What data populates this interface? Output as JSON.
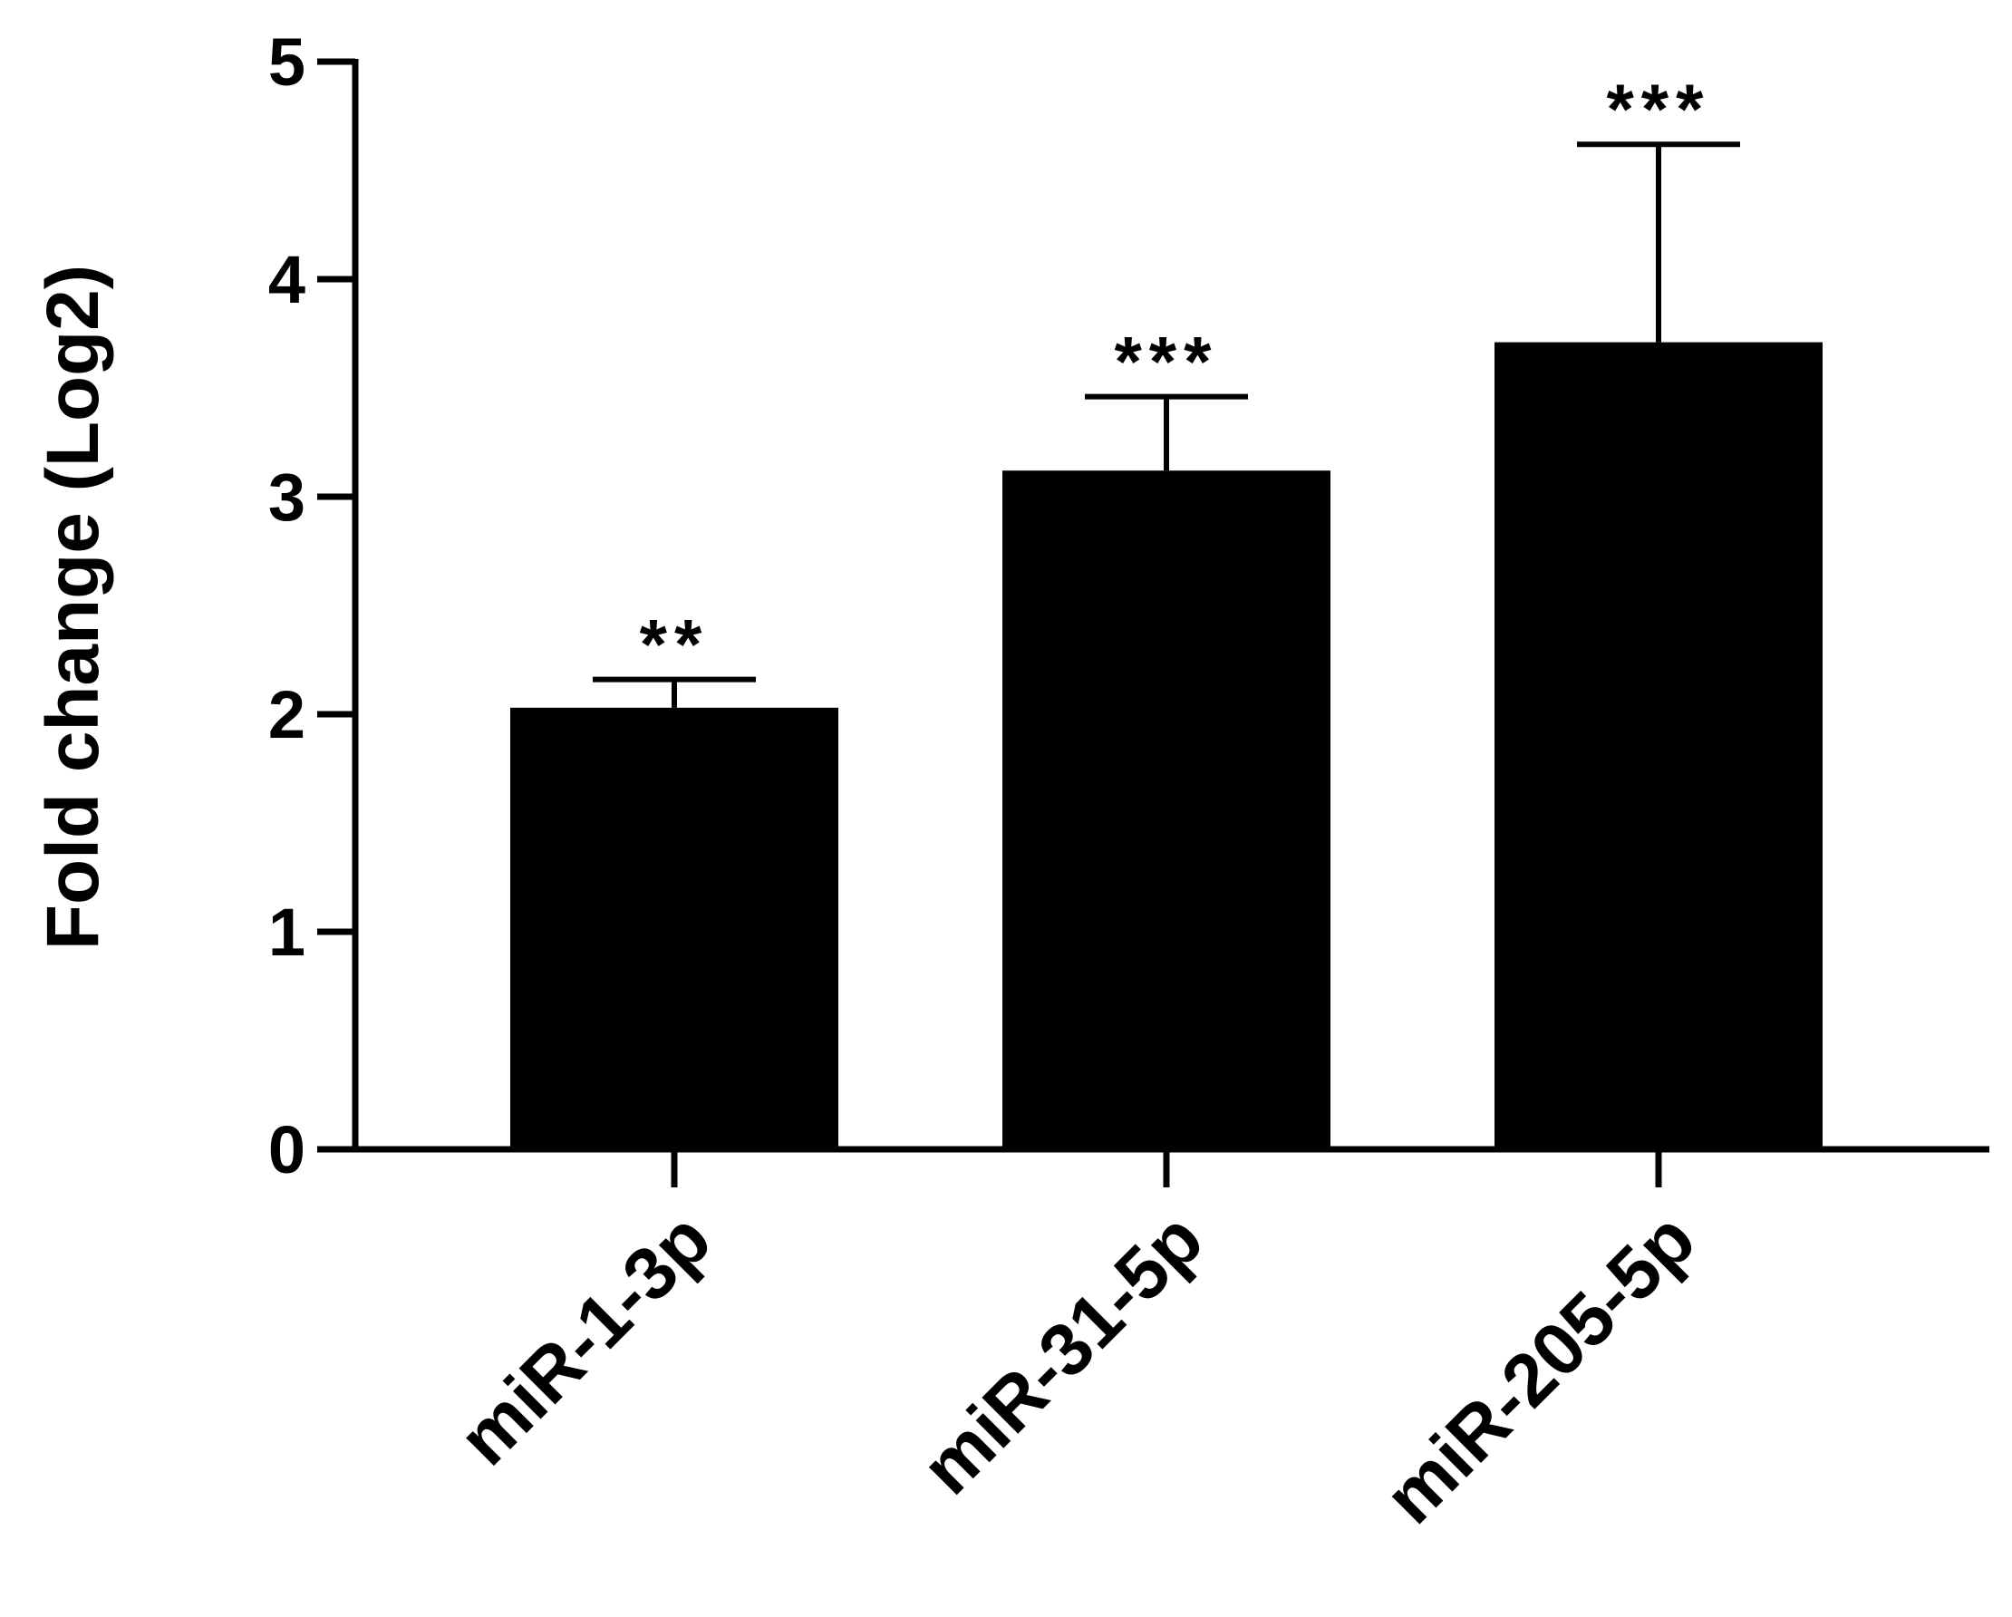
{
  "chart_data": {
    "type": "bar",
    "ylabel": "Fold change (Log2)",
    "categories": [
      "miR-1-3p",
      "miR-31-5p",
      "miR-205-5p"
    ],
    "values": [
      2.03,
      3.12,
      3.71
    ],
    "error_upper": [
      0.13,
      0.34,
      0.91
    ],
    "significance": [
      "**",
      "***",
      "***"
    ],
    "ylim": [
      0,
      5
    ],
    "yticks": [
      "0",
      "1",
      "2",
      "3",
      "4",
      "5"
    ],
    "colors": {
      "bar": "#000000",
      "axis": "#000000"
    },
    "grid": false
  }
}
